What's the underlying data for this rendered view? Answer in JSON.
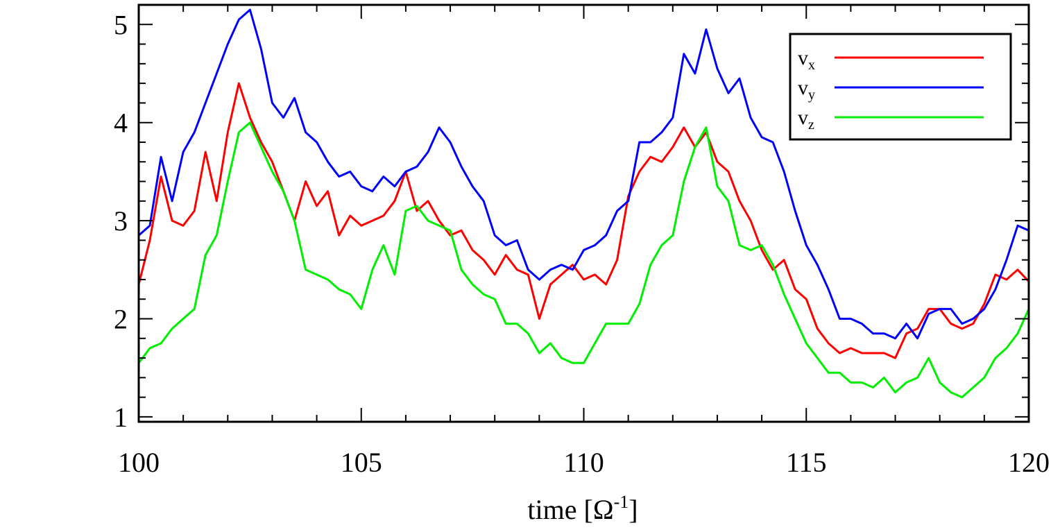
{
  "chart_data": {
    "type": "line",
    "title": "",
    "xlabel": "time [Ω",
    "xlabel_sup": "-1",
    "xlabel_end": "]",
    "ylabel": "",
    "xlim": [
      100,
      120
    ],
    "ylim": [
      0.95,
      5.2
    ],
    "grid": false,
    "legend_position": "top-right",
    "x_ticks": [
      100,
      105,
      110,
      115,
      120
    ],
    "x_tick_labels": [
      "100",
      "105",
      "110",
      "115",
      "120"
    ],
    "y_ticks": [
      1,
      2,
      3,
      4,
      5
    ],
    "y_tick_labels": [
      "1",
      "2",
      "3",
      "4",
      "5"
    ],
    "x": [
      100.0,
      100.25,
      100.5,
      100.75,
      101.0,
      101.25,
      101.5,
      101.75,
      102.0,
      102.25,
      102.5,
      102.75,
      103.0,
      103.25,
      103.5,
      103.75,
      104.0,
      104.25,
      104.5,
      104.75,
      105.0,
      105.25,
      105.5,
      105.75,
      106.0,
      106.25,
      106.5,
      106.75,
      107.0,
      107.25,
      107.5,
      107.75,
      108.0,
      108.25,
      108.5,
      108.75,
      109.0,
      109.25,
      109.5,
      109.75,
      110.0,
      110.25,
      110.5,
      110.75,
      111.0,
      111.25,
      111.5,
      111.75,
      112.0,
      112.25,
      112.5,
      112.75,
      113.0,
      113.25,
      113.5,
      113.75,
      114.0,
      114.25,
      114.5,
      114.75,
      115.0,
      115.25,
      115.5,
      115.75,
      116.0,
      116.25,
      116.5,
      116.75,
      117.0,
      117.25,
      117.5,
      117.75,
      118.0,
      118.25,
      118.5,
      118.75,
      119.0,
      119.25,
      119.5,
      119.75,
      120.0
    ],
    "series": [
      {
        "name": "v",
        "subscript": "x",
        "color": "#ff0000",
        "values": [
          2.35,
          2.8,
          3.45,
          3.0,
          2.95,
          3.1,
          3.7,
          3.2,
          3.9,
          4.4,
          4.05,
          3.8,
          3.6,
          3.3,
          3.0,
          3.4,
          3.15,
          3.3,
          2.85,
          3.05,
          2.95,
          3.0,
          3.05,
          3.2,
          3.5,
          3.1,
          3.2,
          3.0,
          2.85,
          2.9,
          2.7,
          2.6,
          2.45,
          2.65,
          2.5,
          2.45,
          2.0,
          2.35,
          2.45,
          2.55,
          2.4,
          2.45,
          2.35,
          2.6,
          3.25,
          3.5,
          3.65,
          3.6,
          3.75,
          3.95,
          3.75,
          3.9,
          3.6,
          3.5,
          3.2,
          3.0,
          2.7,
          2.5,
          2.6,
          2.3,
          2.2,
          1.9,
          1.75,
          1.65,
          1.7,
          1.65,
          1.65,
          1.65,
          1.6,
          1.85,
          1.9,
          2.1,
          2.1,
          1.95,
          1.9,
          1.95,
          2.15,
          2.45,
          2.4,
          2.5,
          2.38
        ]
      },
      {
        "name": "v",
        "subscript": "y",
        "color": "#0000ff",
        "values": [
          2.85,
          2.95,
          3.65,
          3.2,
          3.7,
          3.9,
          4.2,
          4.5,
          4.8,
          5.05,
          5.15,
          4.75,
          4.2,
          4.05,
          4.25,
          3.9,
          3.8,
          3.6,
          3.45,
          3.5,
          3.35,
          3.3,
          3.45,
          3.35,
          3.5,
          3.55,
          3.7,
          3.95,
          3.8,
          3.55,
          3.35,
          3.2,
          2.85,
          2.75,
          2.8,
          2.5,
          2.4,
          2.5,
          2.55,
          2.5,
          2.7,
          2.75,
          2.85,
          3.1,
          3.2,
          3.8,
          3.8,
          3.9,
          4.05,
          4.7,
          4.5,
          4.95,
          4.55,
          4.3,
          4.45,
          4.05,
          3.85,
          3.8,
          3.5,
          3.1,
          2.75,
          2.55,
          2.3,
          2.0,
          2.0,
          1.95,
          1.85,
          1.85,
          1.8,
          1.95,
          1.8,
          2.05,
          2.1,
          2.1,
          1.95,
          2.0,
          2.1,
          2.3,
          2.6,
          2.95,
          2.9
        ]
      },
      {
        "name": "v",
        "subscript": "z",
        "color": "#00ee00",
        "values": [
          1.55,
          1.7,
          1.75,
          1.9,
          2.0,
          2.1,
          2.65,
          2.85,
          3.4,
          3.9,
          4.0,
          3.75,
          3.5,
          3.3,
          3.0,
          2.5,
          2.45,
          2.4,
          2.3,
          2.25,
          2.1,
          2.5,
          2.75,
          2.45,
          3.1,
          3.15,
          3.0,
          2.95,
          2.9,
          2.5,
          2.35,
          2.25,
          2.2,
          1.95,
          1.95,
          1.85,
          1.65,
          1.75,
          1.6,
          1.55,
          1.55,
          1.75,
          1.95,
          1.95,
          1.95,
          2.15,
          2.55,
          2.75,
          2.85,
          3.4,
          3.75,
          3.95,
          3.35,
          3.2,
          2.75,
          2.7,
          2.75,
          2.55,
          2.25,
          2.0,
          1.75,
          1.6,
          1.45,
          1.45,
          1.35,
          1.35,
          1.3,
          1.4,
          1.25,
          1.35,
          1.4,
          1.6,
          1.35,
          1.25,
          1.2,
          1.3,
          1.4,
          1.6,
          1.7,
          1.85,
          2.1
        ]
      }
    ]
  }
}
